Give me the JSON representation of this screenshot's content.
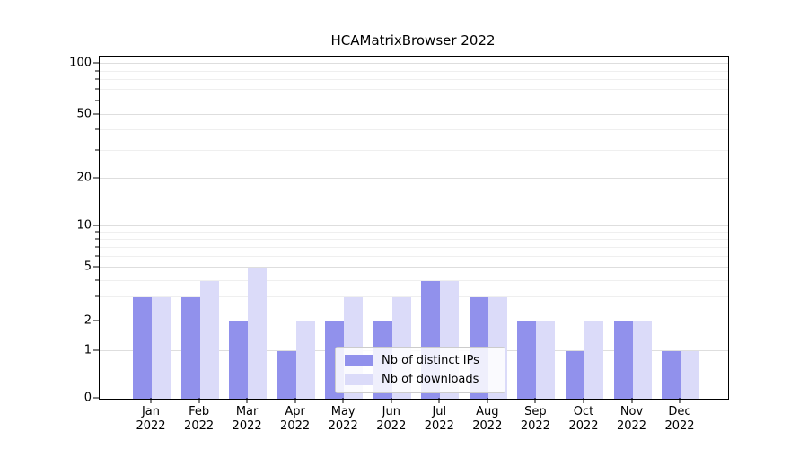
{
  "figure": {
    "background": "#ffffff"
  },
  "chart_data": {
    "type": "bar",
    "title": "HCAMatrixBrowser 2022",
    "xlabel": "",
    "ylabel": "",
    "grid": true,
    "legend_position": "lower center",
    "categories": [
      "Jan 2022",
      "Feb 2022",
      "Mar 2022",
      "Apr 2022",
      "May 2022",
      "Jun 2022",
      "Jul 2022",
      "Aug 2022",
      "Sep 2022",
      "Oct 2022",
      "Nov 2022",
      "Dec 2022"
    ],
    "series": [
      {
        "name": "Nb of distinct IPs",
        "color": "#9191ec",
        "values": [
          3,
          3,
          2,
          1,
          2,
          2,
          4,
          3,
          2,
          1,
          2,
          1
        ]
      },
      {
        "name": "Nb of downloads",
        "color": "#dbdbf9",
        "values": [
          3,
          4,
          5,
          2,
          3,
          3,
          4,
          3,
          2,
          2,
          2,
          1
        ]
      }
    ],
    "y_axis": {
      "scale": "symlog",
      "range": [
        0,
        100
      ],
      "ticks": [
        0,
        1,
        2,
        5,
        10,
        20,
        50,
        100
      ],
      "minor_ticks": [
        3,
        4,
        6,
        7,
        8,
        9,
        30,
        40,
        60,
        70,
        80,
        90
      ]
    }
  }
}
